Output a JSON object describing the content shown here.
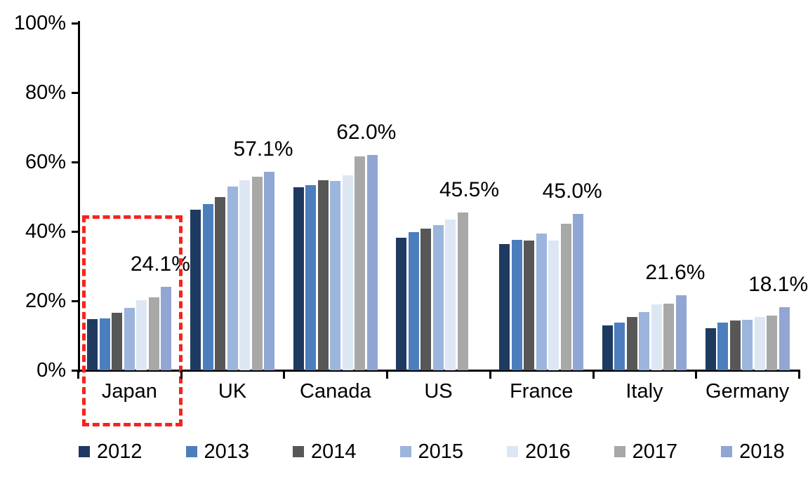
{
  "chart_data": {
    "type": "bar",
    "title": "",
    "xlabel": "",
    "ylabel": "",
    "ylim": [
      0,
      100
    ],
    "grid": false,
    "legend_position": "bottom",
    "yticks": [
      {
        "value": 100,
        "label": "100%"
      },
      {
        "value": 80,
        "label": "80%"
      },
      {
        "value": 60,
        "label": "60%"
      },
      {
        "value": 40,
        "label": "40%"
      },
      {
        "value": 20,
        "label": "20%"
      },
      {
        "value": 0,
        "label": "0%"
      }
    ],
    "categories": [
      "Japan",
      "UK",
      "Canada",
      "US",
      "France",
      "Italy",
      "Germany"
    ],
    "series": [
      {
        "name": "2012",
        "color": "#1F3A60",
        "values": [
          14.8,
          46.3,
          52.8,
          38.1,
          36.4,
          13.0,
          12.1
        ]
      },
      {
        "name": "2013",
        "color": "#4C7EBD",
        "values": [
          15.0,
          47.8,
          53.3,
          39.9,
          37.5,
          13.8,
          13.7
        ]
      },
      {
        "name": "2014",
        "color": "#575757",
        "values": [
          16.5,
          50.0,
          54.8,
          40.8,
          37.4,
          15.3,
          14.3
        ]
      },
      {
        "name": "2015",
        "color": "#9BB5DC",
        "values": [
          17.9,
          53.0,
          54.5,
          41.9,
          39.4,
          16.8,
          14.6
        ]
      },
      {
        "name": "2016",
        "color": "#DDE7F3",
        "values": [
          20.2,
          54.7,
          56.2,
          43.4,
          37.3,
          19.0,
          15.3
        ]
      },
      {
        "name": "2017",
        "color": "#A8A8A8",
        "values": [
          21.0,
          55.8,
          61.7,
          45.5,
          42.2,
          19.2,
          15.8
        ]
      },
      {
        "name": "2018",
        "color": "#91A6D2",
        "values": [
          24.1,
          57.1,
          62.0,
          null,
          45.0,
          21.6,
          18.1
        ]
      }
    ],
    "data_labels": [
      "24.1%",
      "57.1%",
      "62.0%",
      "45.5%",
      "45.0%",
      "21.6%",
      "18.1%"
    ],
    "highlight_box": {
      "category": "Japan",
      "color": "#f8231c",
      "style": "dashed"
    }
  }
}
